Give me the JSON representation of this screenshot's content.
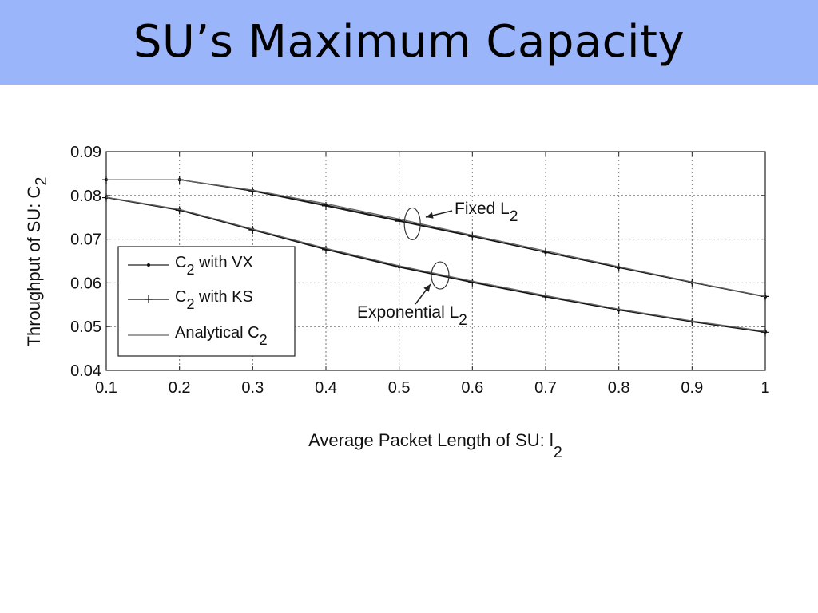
{
  "slide": {
    "title": "SU’s Maximum Capacity",
    "title_bar_color": "#9bb5fb"
  },
  "chart_data": {
    "type": "line",
    "title": "",
    "xlabel": {
      "main": "Average Packet Length of SU: l",
      "sub": "2"
    },
    "ylabel": {
      "main": "Throughput of SU: C",
      "sub": "2"
    },
    "xlim": [
      0.1,
      1
    ],
    "ylim": [
      0.04,
      0.09
    ],
    "xticks": [
      0.1,
      0.2,
      0.3,
      0.4,
      0.5,
      0.6,
      0.7,
      0.8,
      0.9,
      1
    ],
    "xtick_labels": [
      "0.1",
      "0.2",
      "0.3",
      "0.4",
      "0.5",
      "0.6",
      "0.7",
      "0.8",
      "0.9",
      "1"
    ],
    "yticks": [
      0.04,
      0.05,
      0.06,
      0.07,
      0.08,
      0.09
    ],
    "ytick_labels": [
      "0.04",
      "0.05",
      "0.06",
      "0.07",
      "0.08",
      "0.09"
    ],
    "grid": true,
    "legend": {
      "placement": "lower-left",
      "entries": [
        {
          "main": "C",
          "sub": "2",
          "suffix": " with VX",
          "marker": "dot"
        },
        {
          "main": "C",
          "sub": "2",
          "suffix": " with KS",
          "marker": "plus"
        },
        {
          "main": "Analytical C",
          "sub": "2",
          "suffix": "",
          "marker": "none"
        }
      ]
    },
    "series": [
      {
        "group": "fixed",
        "legend_index": 0,
        "marker": "dot",
        "x": [
          0.1,
          0.2,
          0.3,
          0.4,
          0.5,
          0.6,
          0.7,
          0.8,
          0.9,
          1.0
        ],
        "y": [
          0.0836,
          0.0836,
          0.0811,
          0.0778,
          0.0743,
          0.0707,
          0.067,
          0.0635,
          0.0601,
          0.0568
        ]
      },
      {
        "group": "fixed",
        "legend_index": 1,
        "marker": "plus",
        "x": [
          0.1,
          0.2,
          0.3,
          0.4,
          0.5,
          0.6,
          0.7,
          0.8,
          0.9,
          1.0
        ],
        "y": [
          0.0836,
          0.0836,
          0.081,
          0.0776,
          0.0741,
          0.0706,
          0.067,
          0.0635,
          0.0601,
          0.0569
        ]
      },
      {
        "group": "fixed",
        "legend_index": 2,
        "marker": "none",
        "x": [
          0.1,
          0.2,
          0.3,
          0.4,
          0.5,
          0.6,
          0.7,
          0.8,
          0.9,
          1.0
        ],
        "y": [
          0.0836,
          0.0836,
          0.0812,
          0.0781,
          0.0746,
          0.0709,
          0.0673,
          0.0637,
          0.0602,
          0.0569
        ]
      },
      {
        "group": "exponential",
        "legend_index": 0,
        "marker": "dot",
        "x": [
          0.1,
          0.2,
          0.3,
          0.4,
          0.5,
          0.6,
          0.7,
          0.8,
          0.9,
          1.0
        ],
        "y": [
          0.0795,
          0.0767,
          0.0722,
          0.0677,
          0.0637,
          0.0602,
          0.0569,
          0.0538,
          0.0512,
          0.0488
        ]
      },
      {
        "group": "exponential",
        "legend_index": 1,
        "marker": "plus",
        "x": [
          0.1,
          0.2,
          0.3,
          0.4,
          0.5,
          0.6,
          0.7,
          0.8,
          0.9,
          1.0
        ],
        "y": [
          0.0795,
          0.0766,
          0.0721,
          0.0676,
          0.0636,
          0.0601,
          0.0568,
          0.0538,
          0.0511,
          0.0487
        ]
      },
      {
        "group": "exponential",
        "legend_index": 2,
        "marker": "none",
        "x": [
          0.1,
          0.2,
          0.3,
          0.4,
          0.5,
          0.6,
          0.7,
          0.8,
          0.9,
          1.0
        ],
        "y": [
          0.0796,
          0.0768,
          0.0723,
          0.0679,
          0.0639,
          0.0604,
          0.0571,
          0.054,
          0.0513,
          0.0489
        ]
      }
    ],
    "annotations": [
      {
        "main": "Fixed L",
        "sub": "2",
        "group": "fixed",
        "ellipse_center": [
          0.518,
          0.0735
        ]
      },
      {
        "main": "Exponential L",
        "sub": "2",
        "group": "exponential",
        "ellipse_center": [
          0.556,
          0.0617
        ]
      }
    ]
  }
}
